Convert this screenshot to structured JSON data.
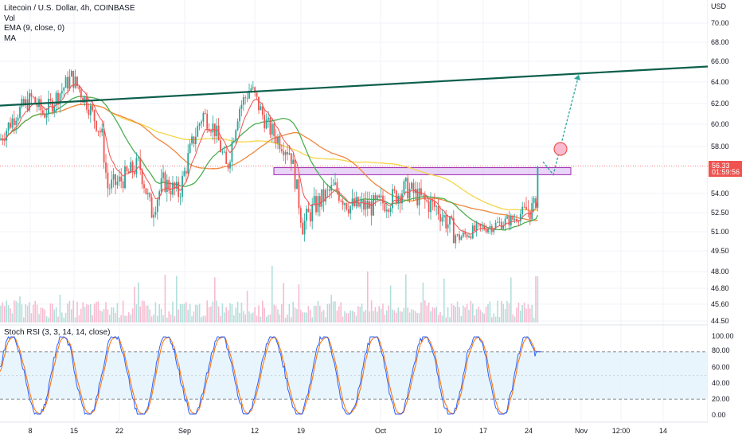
{
  "legend": {
    "title": "Litecoin / U.S. Dollar, 4h, COINBASE",
    "vol": "Vol",
    "ema": "EMA (9, close, 0)",
    "ma": "MA"
  },
  "stoch_legend": "Stoch RSI (3, 3, 14, 14, close)",
  "price_badge": {
    "price": "56.33",
    "timer": "01:59:56"
  },
  "colors": {
    "up": "#26a69a",
    "down": "#ef5350",
    "ema": "#ef5350",
    "ma_green": "#4caf50",
    "ma_orange": "#f0883e",
    "ma_yellow": "#f5d547",
    "trendline": "#0b5e4b",
    "zone": "#d6b3f0",
    "stoch_k": "#2962ff",
    "stoch_d": "#ff6d00",
    "stoch_band": "#e3f2fd",
    "badge": "#ef5350"
  },
  "chart_data": {
    "type": "candlestick",
    "currency": "USD",
    "y_ticks": [
      "70.00",
      "68.00",
      "66.00",
      "64.00",
      "62.00",
      "60.00",
      "58.00",
      "56.33",
      "54.00",
      "52.50",
      "51.00",
      "49.50",
      "48.00",
      "46.80",
      "45.60",
      "44.50"
    ],
    "y_unit": "USD",
    "x_ticks": [
      "8",
      "15",
      "22",
      "Sep",
      "12",
      "19",
      "Oct",
      "10",
      "17",
      "24",
      "Nov",
      "12:00",
      "14"
    ],
    "last_price": 56.33,
    "resistance_zone": [
      55.6,
      56.2
    ],
    "trendline": {
      "start": 61.8,
      "end": 65.5
    },
    "projection": [
      56.7,
      55.6,
      64.7
    ],
    "ma_green_level": 52.3,
    "stoch_ticks": [
      "100.00",
      "80.00",
      "60.00",
      "40.00",
      "20.00",
      "0.00"
    ],
    "stoch_band": [
      20,
      80
    ],
    "stoch_mid": 50
  }
}
